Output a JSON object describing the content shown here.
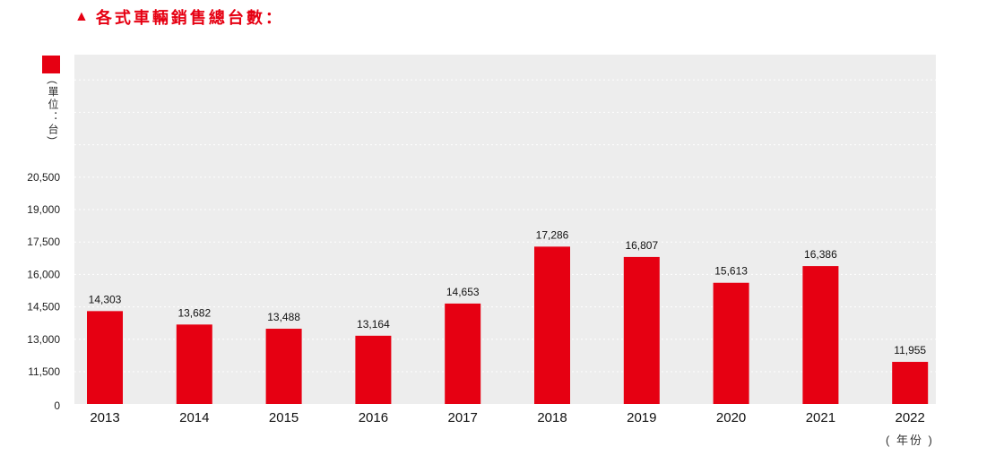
{
  "header": {
    "title_icon": "triangle-up-icon",
    "title": "各式車輛銷售總台數："
  },
  "legend": {
    "unit": "(單位：台)",
    "swatch_color": "#e60012"
  },
  "x_suffix": "( 年份 )",
  "colors": {
    "bar": "#e60012",
    "plot_bg": "#ededed",
    "grid": "#ffffff"
  },
  "chart_data": {
    "type": "bar",
    "categories": [
      "2013",
      "2014",
      "2015",
      "2016",
      "2017",
      "2018",
      "2019",
      "2020",
      "2021",
      "2022"
    ],
    "values": [
      14303,
      13682,
      13488,
      13164,
      14653,
      17286,
      16807,
      15613,
      16386,
      11955
    ],
    "value_labels": [
      "14,303",
      "13,682",
      "13,488",
      "13,164",
      "14,653",
      "17,286",
      "16,807",
      "15,613",
      "16,386",
      "11,955"
    ],
    "y_ticks": [
      0,
      11500,
      13000,
      14500,
      16000,
      17500,
      19000,
      20500
    ],
    "y_tick_labels": [
      "0",
      "11,500",
      "13,000",
      "14,500",
      "16,000",
      "17,500",
      "19,000",
      "20,500"
    ],
    "y_axis_break": true,
    "grid": true,
    "title": "各式車輛銷售總台數：",
    "xlabel": "( 年份 )",
    "ylabel": "(單位：台)"
  }
}
